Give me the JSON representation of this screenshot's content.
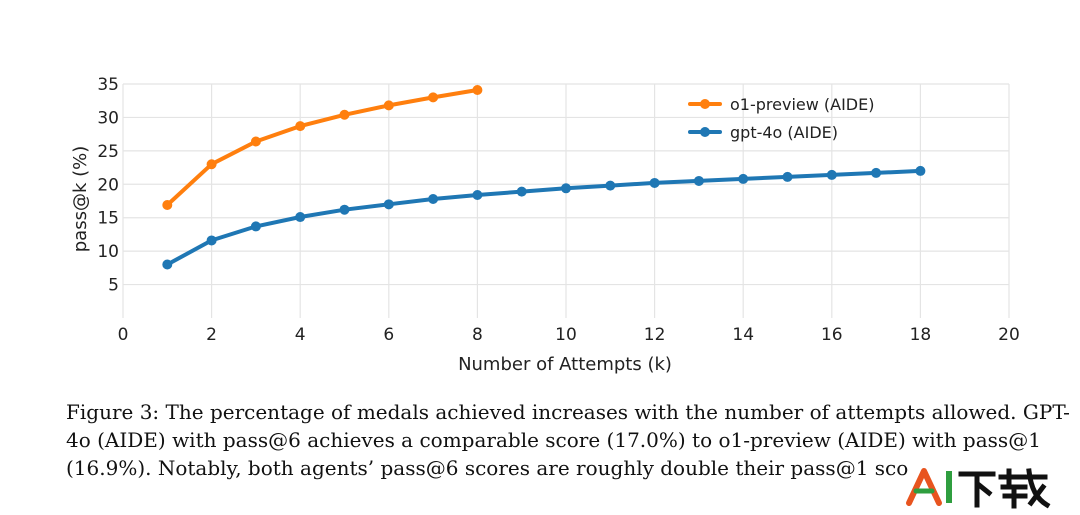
{
  "chart_data": {
    "type": "line",
    "title": "",
    "xlabel": "Number of Attempts (k)",
    "ylabel": "pass@k (%)",
    "xlim": [
      0,
      20
    ],
    "ylim": [
      0,
      35
    ],
    "x_ticks": [
      0,
      2,
      4,
      6,
      8,
      10,
      12,
      14,
      16,
      18,
      20
    ],
    "y_ticks": [
      5,
      10,
      15,
      20,
      25,
      30,
      35
    ],
    "grid": true,
    "legend_position": "top-right",
    "series": [
      {
        "name": "o1-preview (AIDE)",
        "color": "#ff7f0e",
        "x": [
          1,
          2,
          3,
          4,
          5,
          6,
          7,
          8
        ],
        "values": [
          16.9,
          23.0,
          26.4,
          28.7,
          30.4,
          31.8,
          33.0,
          34.1
        ]
      },
      {
        "name": "gpt-4o (AIDE)",
        "color": "#1f77b4",
        "x": [
          1,
          2,
          3,
          4,
          5,
          6,
          7,
          8,
          9,
          10,
          11,
          12,
          13,
          14,
          15,
          16,
          17,
          18
        ],
        "values": [
          8.0,
          11.6,
          13.7,
          15.1,
          16.2,
          17.0,
          17.8,
          18.4,
          18.9,
          19.4,
          19.8,
          20.2,
          20.5,
          20.8,
          21.1,
          21.4,
          21.7,
          22.0
        ]
      }
    ]
  },
  "caption": {
    "line1": "Figure 3: The percentage of medals achieved increases with the number of attempts allowed. GPT-",
    "line2": "4o (AIDE) with pass@6 achieves a comparable score (17.0%) to o1-preview (AIDE) with pass@1",
    "line3": "(16.9%). Notably, both agents’ pass@6 scores are roughly double their pass@1 sco"
  },
  "watermark": {
    "text": "AI下载",
    "colors": [
      "#e8541f",
      "#2f9e3f",
      "#111111"
    ]
  }
}
